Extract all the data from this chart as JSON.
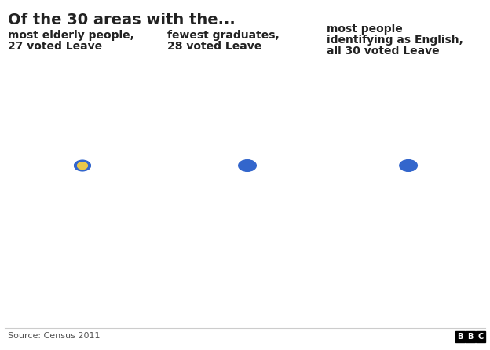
{
  "title": "Of the 30 areas with the...",
  "subtitle1_line1": "most elderly people,",
  "subtitle1_line2": "27 voted Leave",
  "subtitle2_line1": "fewest graduates,",
  "subtitle2_line2": "28 voted Leave",
  "subtitle3_line1": "most people",
  "subtitle3_line2": "identifying as English,",
  "subtitle3_line3": "all 30 voted Leave",
  "source": "Source: Census 2011",
  "bbc_text": "BBC",
  "bg_color": "#ffffff",
  "map_base_color": "#d4d4d4",
  "map_highlight_blue": "#3366cc",
  "map_highlight_yellow": "#e8c84a",
  "title_fontsize": 14,
  "subtitle_fontsize": 10,
  "source_fontsize": 8
}
